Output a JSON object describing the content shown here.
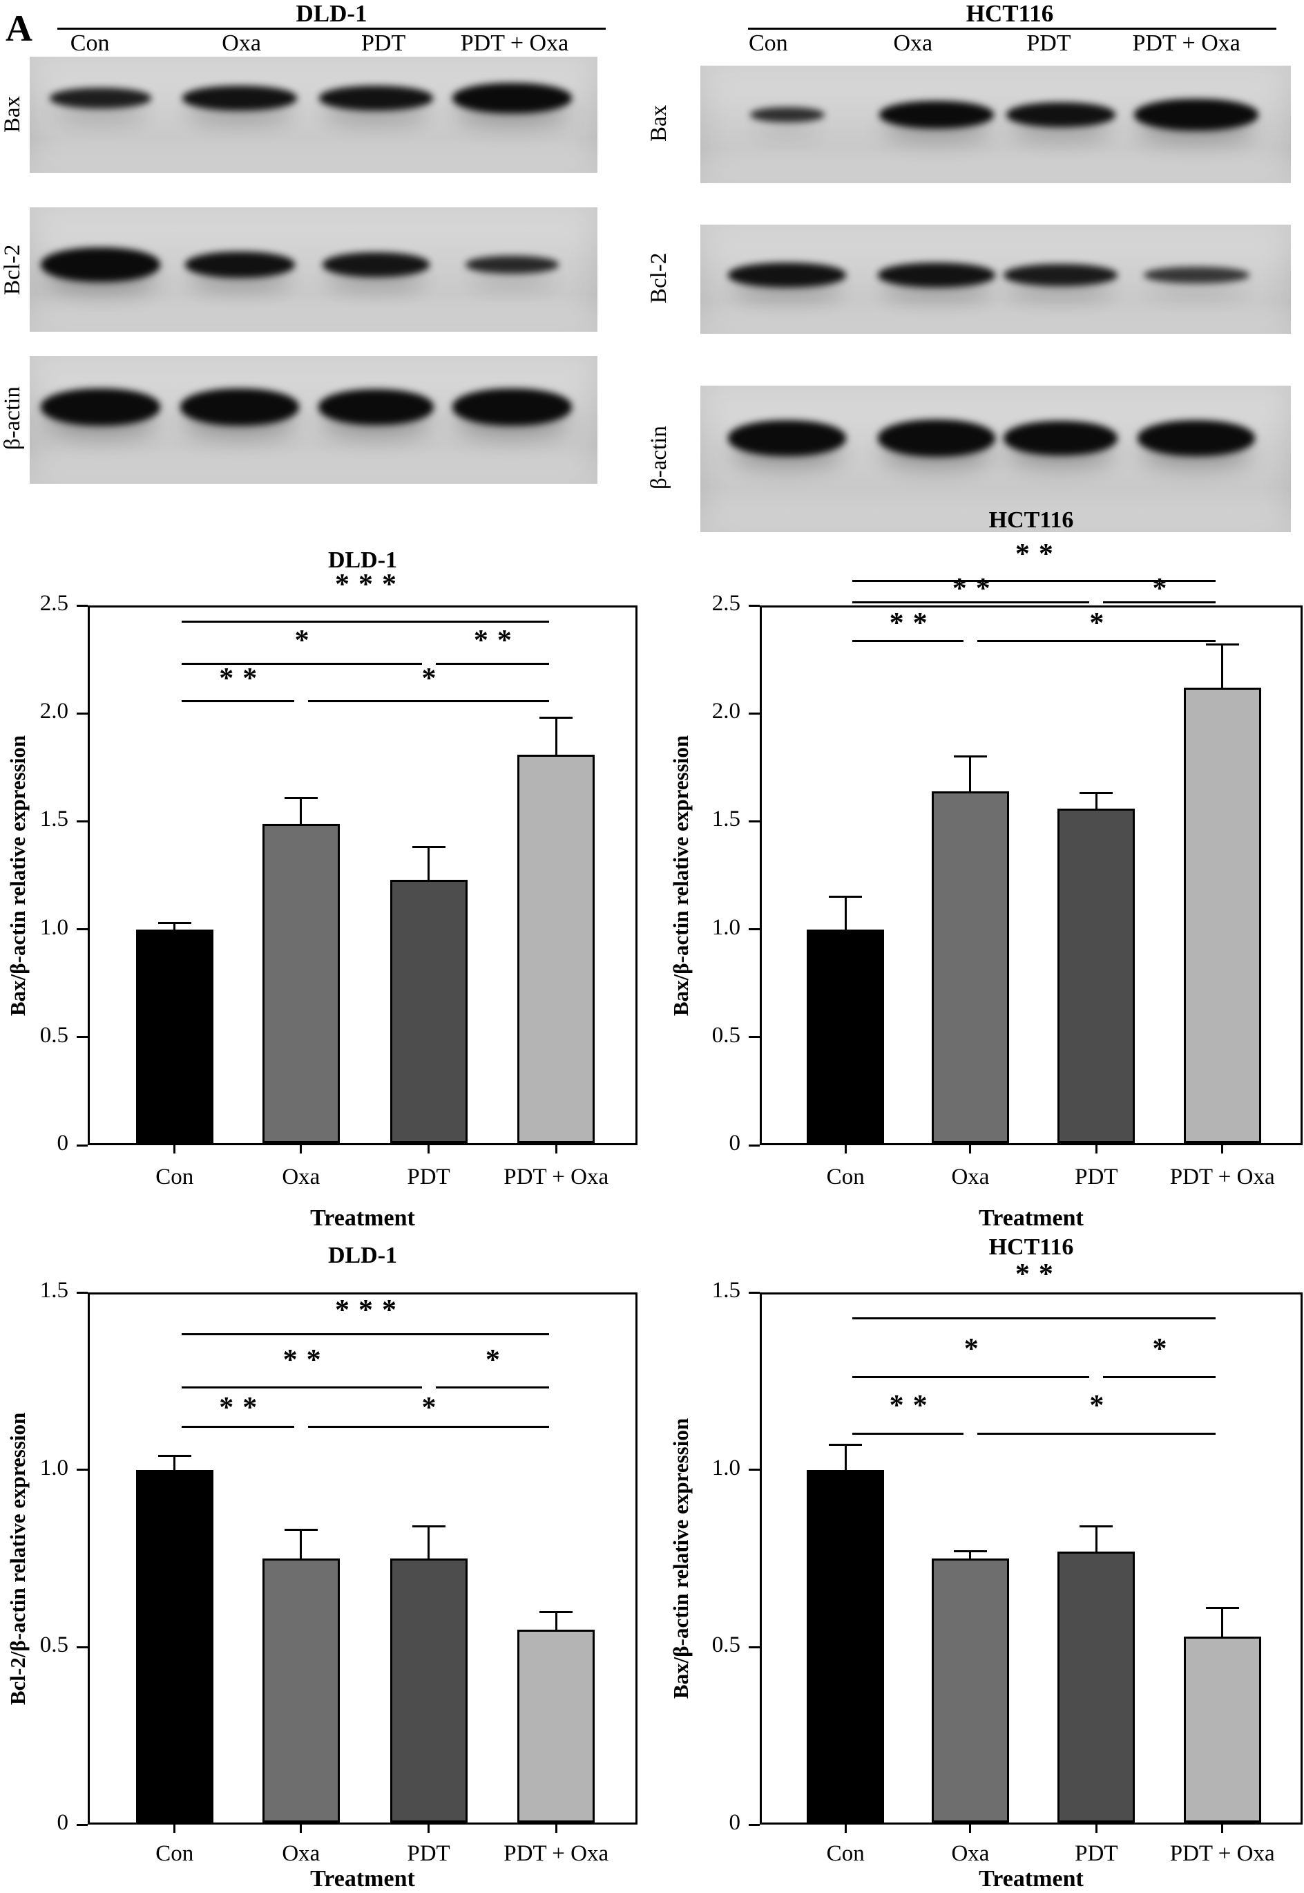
{
  "figure": {
    "panel_letter": "A"
  },
  "blots": {
    "panels": [
      {
        "title": "DLD-1",
        "lane_labels": [
          "Con",
          "Oxa",
          "PDT",
          "PDT + Oxa"
        ],
        "rows": [
          {
            "protein": "Bax",
            "bands": [
              {
                "w": 0.85,
                "h": 30,
                "o": 0.9
              },
              {
                "w": 0.96,
                "h": 36,
                "o": 0.96
              },
              {
                "w": 0.96,
                "h": 36,
                "o": 0.96
              },
              {
                "w": 1.0,
                "h": 44,
                "o": 1.0
              }
            ]
          },
          {
            "protein": "Bcl-2",
            "bands": [
              {
                "w": 1.0,
                "h": 50,
                "o": 1.0
              },
              {
                "w": 0.92,
                "h": 38,
                "o": 0.97
              },
              {
                "w": 0.9,
                "h": 36,
                "o": 0.95
              },
              {
                "w": 0.78,
                "h": 26,
                "o": 0.85
              }
            ]
          },
          {
            "protein": "β-actin",
            "bands": [
              {
                "w": 1.0,
                "h": 54,
                "o": 1.0
              },
              {
                "w": 1.0,
                "h": 54,
                "o": 1.0
              },
              {
                "w": 0.97,
                "h": 52,
                "o": 1.0
              },
              {
                "w": 1.0,
                "h": 54,
                "o": 1.0
              }
            ]
          }
        ]
      },
      {
        "title": "HCT116",
        "lane_labels": [
          "Con",
          "Oxa",
          "PDT",
          "PDT + Oxa"
        ],
        "rows": [
          {
            "protein": "Bax",
            "bands": [
              {
                "w": 0.6,
                "h": 22,
                "o": 0.82
              },
              {
                "w": 0.92,
                "h": 40,
                "o": 1.0
              },
              {
                "w": 0.88,
                "h": 36,
                "o": 0.97
              },
              {
                "w": 1.0,
                "h": 46,
                "o": 1.0
              }
            ]
          },
          {
            "protein": "Bcl-2",
            "bands": [
              {
                "w": 0.95,
                "h": 36,
                "o": 0.96
              },
              {
                "w": 0.95,
                "h": 36,
                "o": 0.96
              },
              {
                "w": 0.92,
                "h": 32,
                "o": 0.92
              },
              {
                "w": 0.85,
                "h": 24,
                "o": 0.78
              }
            ]
          },
          {
            "protein": "β-actin",
            "bands": [
              {
                "w": 0.95,
                "h": 52,
                "o": 1.0
              },
              {
                "w": 0.95,
                "h": 54,
                "o": 1.0
              },
              {
                "w": 0.92,
                "h": 50,
                "o": 1.0
              },
              {
                "w": 0.95,
                "h": 52,
                "o": 1.0
              }
            ]
          }
        ]
      }
    ]
  },
  "chart_data": [
    {
      "type": "bar",
      "title": "DLD-1",
      "ylabel": "Bax/β-actin relative expression",
      "xlabel": "Treatment",
      "categories": [
        "Con",
        "Oxa",
        "PDT",
        "PDT + Oxa"
      ],
      "values": [
        1.0,
        1.49,
        1.23,
        1.81
      ],
      "errors": [
        0.03,
        0.12,
        0.15,
        0.17
      ],
      "bar_colors": [
        "#000000",
        "#6e6e6e",
        "#4d4d4d",
        "#b4b4b4"
      ],
      "ylim": [
        0,
        2.5
      ],
      "yticks": [
        "0",
        "0.5",
        "1.0",
        "1.5",
        "2.0",
        "2.5"
      ],
      "grid": false,
      "significance": [
        {
          "from": 0,
          "to": 3,
          "y": 2.43,
          "label": "***",
          "label_y": 2.58
        },
        {
          "from": 0,
          "to": 2,
          "y": 2.235,
          "label": "*",
          "label_y": 2.32
        },
        {
          "from": 2,
          "to": 3,
          "y": 2.235,
          "label": "**",
          "label_y": 2.32
        },
        {
          "from": 0,
          "to": 1,
          "y": 2.06,
          "label": "**",
          "label_y": 2.145
        },
        {
          "from": 1,
          "to": 3,
          "y": 2.06,
          "label": "*",
          "label_y": 2.145
        }
      ]
    },
    {
      "type": "bar",
      "title": "HCT116",
      "ylabel": "Bax/β-actin relative expression",
      "xlabel": "Treatment",
      "categories": [
        "Con",
        "Oxa",
        "PDT",
        "PDT + Oxa"
      ],
      "values": [
        1.0,
        1.64,
        1.56,
        2.12
      ],
      "errors": [
        0.15,
        0.16,
        0.07,
        0.2
      ],
      "bar_colors": [
        "#000000",
        "#6e6e6e",
        "#4d4d4d",
        "#b4b4b4"
      ],
      "ylim": [
        0,
        2.5
      ],
      "yticks": [
        "0",
        "0.5",
        "1.0",
        "1.5",
        "2.0",
        "2.5"
      ],
      "grid": false,
      "significance": [
        {
          "from": 0,
          "to": 3,
          "y": 2.62,
          "label": "**",
          "label_y": 2.72
        },
        {
          "from": 0,
          "to": 2,
          "y": 2.52,
          "label": "**",
          "label_y": 2.56
        },
        {
          "from": 2,
          "to": 3,
          "y": 2.52,
          "label": "*",
          "label_y": 2.56
        },
        {
          "from": 0,
          "to": 1,
          "y": 2.34,
          "label": "**",
          "label_y": 2.4
        },
        {
          "from": 1,
          "to": 3,
          "y": 2.34,
          "label": "*",
          "label_y": 2.4
        }
      ]
    },
    {
      "type": "bar",
      "title": "DLD-1",
      "ylabel": "Bcl-2/β-actin relative expression",
      "xlabel": "Treatment",
      "categories": [
        "Con",
        "Oxa",
        "PDT",
        "PDT + Oxa"
      ],
      "values": [
        1.0,
        0.75,
        0.75,
        0.55
      ],
      "errors": [
        0.04,
        0.08,
        0.09,
        0.05
      ],
      "bar_colors": [
        "#000000",
        "#6e6e6e",
        "#4d4d4d",
        "#b4b4b4"
      ],
      "ylim": [
        0,
        1.5
      ],
      "yticks": [
        "0",
        "0.5",
        "1.0",
        "1.5"
      ],
      "grid": false,
      "significance": [
        {
          "from": 0,
          "to": 3,
          "y": 1.385,
          "label": "***",
          "label_y": 1.44
        },
        {
          "from": 0,
          "to": 2,
          "y": 1.235,
          "label": "**",
          "label_y": 1.3
        },
        {
          "from": 2,
          "to": 3,
          "y": 1.235,
          "label": "*",
          "label_y": 1.3
        },
        {
          "from": 0,
          "to": 1,
          "y": 1.125,
          "label": "**",
          "label_y": 1.165
        },
        {
          "from": 1,
          "to": 3,
          "y": 1.125,
          "label": "*",
          "label_y": 1.165
        }
      ]
    },
    {
      "type": "bar",
      "title": "HCT116",
      "ylabel": "Bax/β-actin relative expression",
      "xlabel": "Treatment",
      "categories": [
        "Con",
        "Oxa",
        "PDT",
        "PDT + Oxa"
      ],
      "values": [
        1.0,
        0.75,
        0.77,
        0.53
      ],
      "errors": [
        0.07,
        0.02,
        0.07,
        0.08
      ],
      "bar_colors": [
        "#000000",
        "#6e6e6e",
        "#4d4d4d",
        "#b4b4b4"
      ],
      "ylim": [
        0,
        1.5
      ],
      "yticks": [
        "0",
        "0.5",
        "1.0",
        "1.5"
      ],
      "grid": false,
      "significance": [
        {
          "from": 0,
          "to": 3,
          "y": 1.43,
          "label": "**",
          "label_y": 1.54
        },
        {
          "from": 0,
          "to": 2,
          "y": 1.265,
          "label": "*",
          "label_y": 1.33
        },
        {
          "from": 2,
          "to": 3,
          "y": 1.265,
          "label": "*",
          "label_y": 1.33
        },
        {
          "from": 0,
          "to": 1,
          "y": 1.105,
          "label": "**",
          "label_y": 1.17
        },
        {
          "from": 1,
          "to": 3,
          "y": 1.105,
          "label": "*",
          "label_y": 1.17
        }
      ]
    }
  ]
}
